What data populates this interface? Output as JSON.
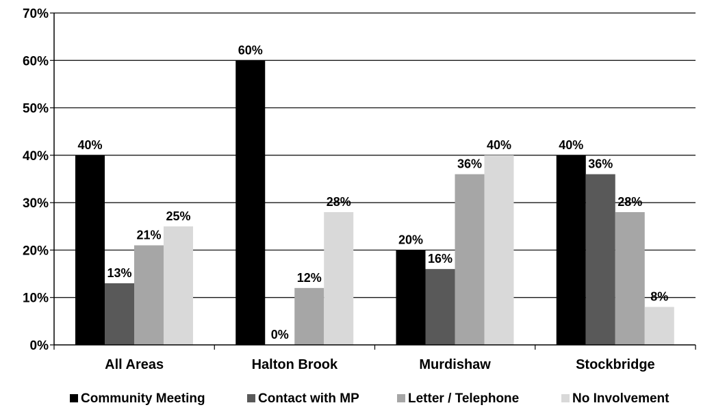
{
  "chart_data": {
    "type": "bar",
    "categories": [
      "All Areas",
      "Halton Brook",
      "Murdishaw",
      "Stockbridge"
    ],
    "series": [
      {
        "name": "Community Meeting",
        "values": [
          40,
          60,
          20,
          40
        ],
        "labels": [
          "40%",
          "60%",
          "20%",
          "40%"
        ]
      },
      {
        "name": "Contact with MP",
        "values": [
          13,
          0,
          16,
          36
        ],
        "labels": [
          "13%",
          "0%",
          "16%",
          "36%"
        ]
      },
      {
        "name": "Letter / Telephone",
        "values": [
          21,
          12,
          36,
          28
        ],
        "labels": [
          "21%",
          "12%",
          "36%",
          "28%"
        ]
      },
      {
        "name": "No Involvement",
        "values": [
          25,
          28,
          40,
          8
        ],
        "labels": [
          "25%",
          "28%",
          "40%",
          "8%"
        ]
      }
    ],
    "ylim": [
      0,
      70
    ],
    "yticks": [
      0,
      10,
      20,
      30,
      40,
      50,
      60,
      70
    ],
    "ytick_labels": [
      "0%",
      "10%",
      "20%",
      "30%",
      "40%",
      "50%",
      "60%",
      "70%"
    ],
    "grid": true,
    "legend_position": "bottom",
    "colors": [
      "#000000",
      "#595959",
      "#a6a6a6",
      "#d9d9d9"
    ]
  }
}
